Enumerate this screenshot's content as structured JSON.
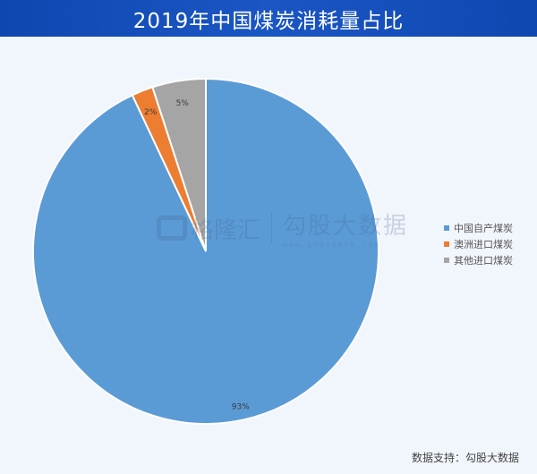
{
  "header": {
    "title": "2019年中国煤炭消耗量占比"
  },
  "chart_data": {
    "type": "pie",
    "title": "2019年中国煤炭消耗量占比",
    "categories": [
      "中国自产煤炭",
      "澳洲进口煤炭",
      "其他进口煤炭"
    ],
    "values": [
      93,
      2,
      5
    ],
    "labels": [
      "93%",
      "2%",
      "5%"
    ],
    "colors": [
      "#5b9bd5",
      "#ed7d31",
      "#a5a5a5"
    ],
    "start_angle": "12 o'clock",
    "direction": "clockwise",
    "legend_position": "right"
  },
  "legend": {
    "items": [
      {
        "label": "中国自产煤炭",
        "color": "#5b9bd5"
      },
      {
        "label": "澳洲进口煤炭",
        "color": "#ed7d31"
      },
      {
        "label": "其他进口煤炭",
        "color": "#a5a5a5"
      }
    ]
  },
  "watermark": {
    "left": "格隆汇",
    "right": "勾股大数据",
    "url": "www.gogudata.com"
  },
  "footer": {
    "source": "数据支持：勾股大数据"
  }
}
